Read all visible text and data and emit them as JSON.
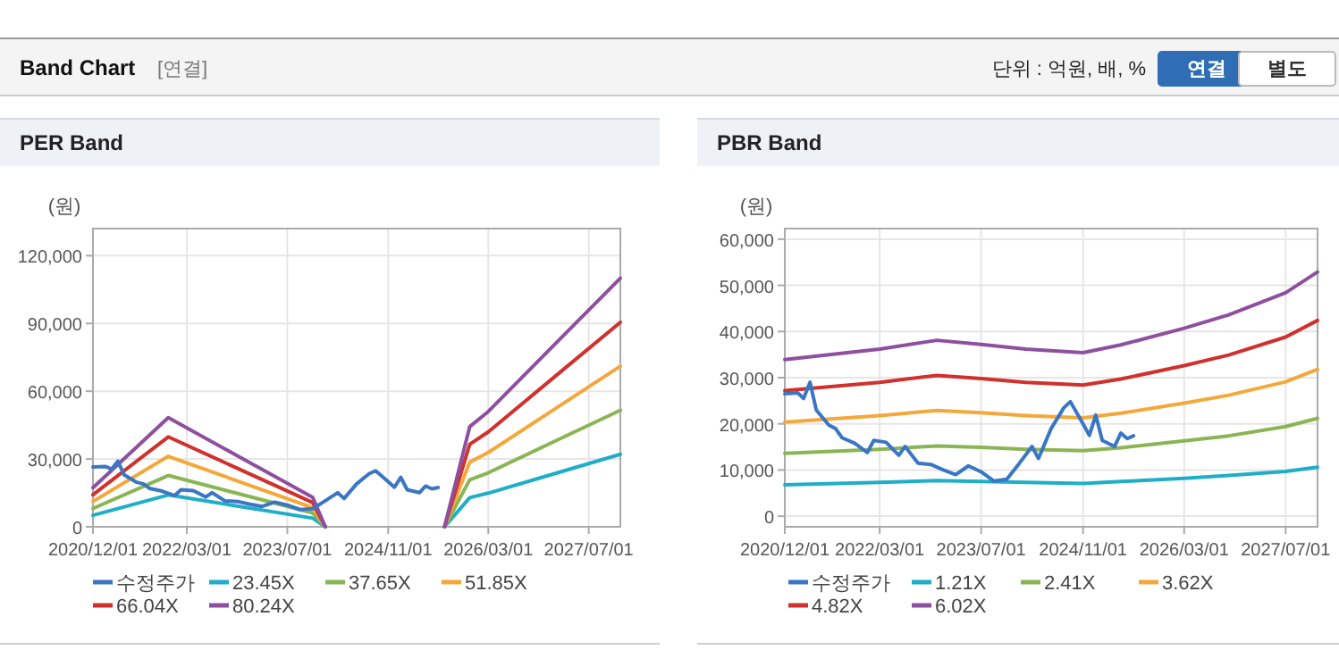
{
  "chart_data": [
    {
      "type": "line",
      "title": "PER Band",
      "ylabel": "(원)",
      "annotations": [
        "Band Chart",
        "[연결]",
        "단위 : 억원, 배, %",
        "연결",
        "별도"
      ],
      "xlim": [
        "2020-12-01",
        "2027-12-01"
      ],
      "xticks": [
        {
          "value": "2020-12-01",
          "label": "2020/12/01"
        },
        {
          "value": "2022-03-01",
          "label": "2022/03/01"
        },
        {
          "value": "2023-07-01",
          "label": "2023/07/01"
        },
        {
          "value": "2024-11-01",
          "label": "2024/11/01"
        },
        {
          "value": "2026-03-01",
          "label": "2026/03/01"
        },
        {
          "value": "2027-07-01",
          "label": "2027/07/01"
        }
      ],
      "ylim": [
        0,
        132000
      ],
      "yticks": [
        {
          "value": 0,
          "label": "0"
        },
        {
          "value": 30000,
          "label": "30,000"
        },
        {
          "value": 60000,
          "label": "60,000"
        },
        {
          "value": 90000,
          "label": "90,000"
        },
        {
          "value": 120000,
          "label": "120,000"
        }
      ],
      "grid": true,
      "legend": "bottom",
      "marker": "none",
      "line_style": "solid",
      "series": [
        {
          "name": "수정주가",
          "color": "#3a76c4",
          "x": [
            "2020-12",
            "2021-02",
            "2021-03",
            "2021-04",
            "2021-05",
            "2021-07",
            "2021-08",
            "2021-09",
            "2021-11",
            "2022-01",
            "2022-02",
            "2022-04",
            "2022-06",
            "2022-07",
            "2022-09",
            "2022-11",
            "2023-01",
            "2023-03",
            "2023-05",
            "2023-07",
            "2023-09",
            "2023-11",
            "2024-01",
            "2024-03",
            "2024-04",
            "2024-06",
            "2024-08",
            "2024-09",
            "2024-11",
            "2024-12",
            "2025-01",
            "2025-02",
            "2025-04",
            "2025-05",
            "2025-06",
            "2025-07"
          ],
          "values": [
            26500,
            26700,
            25500,
            29000,
            23000,
            19700,
            19000,
            17000,
            15800,
            13800,
            16400,
            16000,
            13200,
            15100,
            11500,
            11200,
            10000,
            9000,
            10900,
            9600,
            7600,
            8000,
            11500,
            15100,
            12500,
            19000,
            23500,
            24800,
            20000,
            17500,
            21900,
            16400,
            15100,
            18000,
            16800,
            17400
          ]
        },
        {
          "name": "23.45X",
          "color": "#1eaec8",
          "x": [
            "2020-12",
            "2021-12",
            "2023-11",
            "2024-01",
            "2024-07",
            "2025-08",
            "2025-12",
            "2026-03",
            "2027-03",
            "2027-12"
          ],
          "values": [
            5100,
            14100,
            3800,
            0,
            null,
            0,
            12900,
            14900,
            24700,
            32100
          ]
        },
        {
          "name": "37.65X",
          "color": "#8ab553",
          "x": [
            "2020-12",
            "2021-12",
            "2023-11",
            "2024-01",
            "2024-07",
            "2025-08",
            "2025-12",
            "2026-03",
            "2027-03",
            "2027-12"
          ],
          "values": [
            8100,
            22700,
            6100,
            0,
            null,
            0,
            20800,
            23900,
            39700,
            51600
          ]
        },
        {
          "name": "51.85X",
          "color": "#f4a83a",
          "x": [
            "2020-12",
            "2021-12",
            "2023-11",
            "2024-01",
            "2024-07",
            "2025-08",
            "2025-12",
            "2026-03",
            "2027-03",
            "2027-12"
          ],
          "values": [
            11200,
            31200,
            8400,
            0,
            null,
            0,
            28600,
            32900,
            54700,
            71100
          ]
        },
        {
          "name": "66.04X",
          "color": "#d0312d",
          "x": [
            "2020-12",
            "2021-12",
            "2023-11",
            "2024-01",
            "2024-07",
            "2025-08",
            "2025-12",
            "2026-03",
            "2027-03",
            "2027-12"
          ],
          "values": [
            14200,
            39800,
            10700,
            0,
            null,
            0,
            36500,
            42000,
            69700,
            90500
          ]
        },
        {
          "name": "80.24X",
          "color": "#8e4f9f",
          "x": [
            "2020-12",
            "2021-12",
            "2023-11",
            "2024-01",
            "2024-07",
            "2025-08",
            "2025-12",
            "2026-03",
            "2027-03",
            "2027-12"
          ],
          "values": [
            17300,
            48300,
            13000,
            0,
            null,
            0,
            44300,
            51000,
            84700,
            110000
          ]
        }
      ]
    },
    {
      "type": "line",
      "title": "PBR Band",
      "ylabel": "(원)",
      "xlim": [
        "2020-12-01",
        "2027-12-01"
      ],
      "xticks": [
        {
          "value": "2020-12-01",
          "label": "2020/12/01"
        },
        {
          "value": "2022-03-01",
          "label": "2022/03/01"
        },
        {
          "value": "2023-07-01",
          "label": "2023/07/01"
        },
        {
          "value": "2024-11-01",
          "label": "2024/11/01"
        },
        {
          "value": "2026-03-01",
          "label": "2026/03/01"
        },
        {
          "value": "2027-07-01",
          "label": "2027/07/01"
        }
      ],
      "ylim": [
        -2300,
        62300
      ],
      "yticks": [
        {
          "value": 0,
          "label": "0"
        },
        {
          "value": 10000,
          "label": "10,000"
        },
        {
          "value": 20000,
          "label": "20,000"
        },
        {
          "value": 30000,
          "label": "30,000"
        },
        {
          "value": 40000,
          "label": "40,000"
        },
        {
          "value": 50000,
          "label": "50,000"
        },
        {
          "value": 60000,
          "label": "60,000"
        }
      ],
      "grid": true,
      "legend": "bottom",
      "marker": "none",
      "line_style": "solid",
      "series": [
        {
          "name": "수정주가",
          "color": "#3a76c4",
          "x": [
            "2020-12",
            "2021-02",
            "2021-03",
            "2021-04",
            "2021-05",
            "2021-07",
            "2021-08",
            "2021-09",
            "2021-11",
            "2022-01",
            "2022-02",
            "2022-04",
            "2022-06",
            "2022-07",
            "2022-09",
            "2022-11",
            "2023-01",
            "2023-03",
            "2023-05",
            "2023-07",
            "2023-09",
            "2023-11",
            "2024-01",
            "2024-03",
            "2024-04",
            "2024-06",
            "2024-08",
            "2024-09",
            "2024-11",
            "2024-12",
            "2025-01",
            "2025-02",
            "2025-04",
            "2025-05",
            "2025-06",
            "2025-07"
          ],
          "values": [
            26500,
            26700,
            25500,
            29000,
            23000,
            19700,
            19000,
            17000,
            15800,
            13800,
            16400,
            16000,
            13200,
            15100,
            11500,
            11200,
            10000,
            9000,
            10900,
            9600,
            7600,
            8000,
            11500,
            15100,
            12500,
            19000,
            23500,
            24800,
            20000,
            17500,
            21900,
            16400,
            15100,
            18000,
            16800,
            17400
          ]
        },
        {
          "name": "1.21X",
          "color": "#1eaec8",
          "x": [
            "2020-12",
            "2022-03",
            "2022-12",
            "2023-07",
            "2024-02",
            "2024-11",
            "2025-05",
            "2026-03",
            "2026-10",
            "2027-07",
            "2027-12"
          ],
          "values": [
            6800,
            7300,
            7700,
            7500,
            7300,
            7100,
            7500,
            8200,
            8800,
            9700,
            10600
          ]
        },
        {
          "name": "2.41X",
          "color": "#8ab553",
          "x": [
            "2020-12",
            "2022-03",
            "2022-12",
            "2023-07",
            "2024-02",
            "2024-11",
            "2025-05",
            "2026-03",
            "2026-10",
            "2027-07",
            "2027-12"
          ],
          "values": [
            13600,
            14500,
            15200,
            14900,
            14500,
            14200,
            14800,
            16300,
            17400,
            19400,
            21200
          ]
        },
        {
          "name": "3.62X",
          "color": "#f4a83a",
          "x": [
            "2020-12",
            "2022-03",
            "2022-12",
            "2023-07",
            "2024-02",
            "2024-11",
            "2025-05",
            "2026-03",
            "2026-10",
            "2027-07",
            "2027-12"
          ],
          "values": [
            20400,
            21800,
            22900,
            22400,
            21800,
            21300,
            22300,
            24500,
            26200,
            29100,
            31800
          ]
        },
        {
          "name": "4.82X",
          "color": "#d0312d",
          "x": [
            "2020-12",
            "2022-03",
            "2022-12",
            "2023-07",
            "2024-02",
            "2024-11",
            "2025-05",
            "2026-03",
            "2026-10",
            "2027-07",
            "2027-12"
          ],
          "values": [
            27200,
            29000,
            30500,
            29800,
            29000,
            28400,
            29700,
            32600,
            34900,
            38800,
            42400
          ]
        },
        {
          "name": "6.02X",
          "color": "#8e4f9f",
          "x": [
            "2020-12",
            "2022-03",
            "2022-12",
            "2023-07",
            "2024-02",
            "2024-11",
            "2025-05",
            "2026-03",
            "2026-10",
            "2027-07",
            "2027-12"
          ],
          "values": [
            33900,
            36200,
            38100,
            37200,
            36200,
            35400,
            37100,
            40700,
            43600,
            48400,
            52900
          ]
        }
      ]
    }
  ]
}
